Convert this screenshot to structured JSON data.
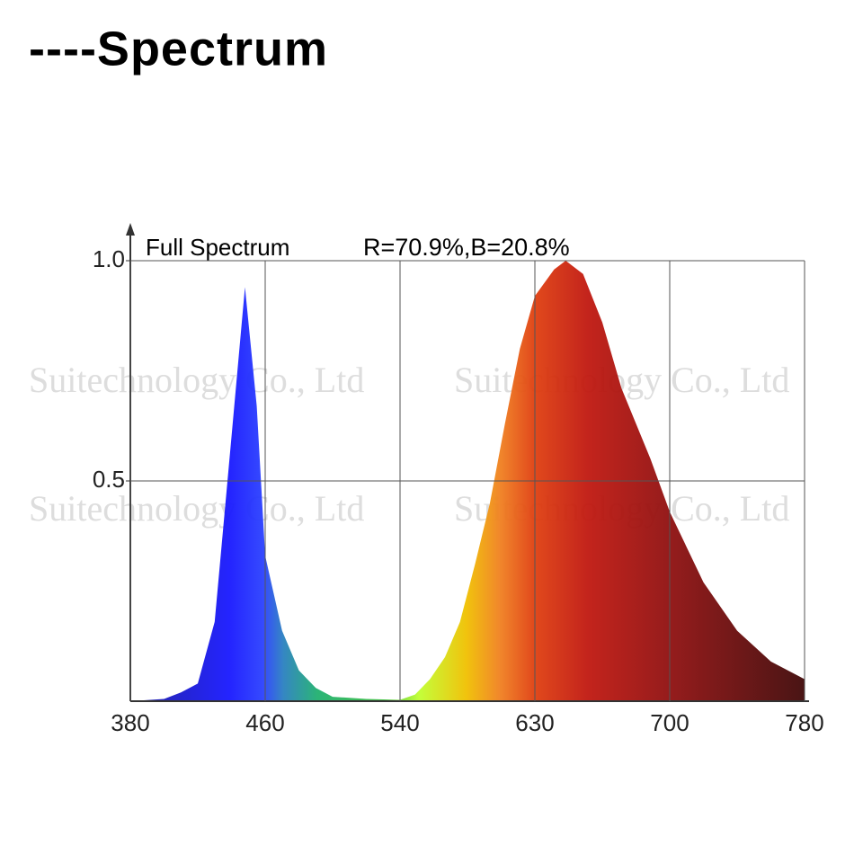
{
  "chart_data": {
    "type": "area",
    "title": "----Spectrum",
    "legend_label": "Full Spectrum",
    "annotation": "R=70.9%,B=20.8%",
    "watermarks": [
      "Suitechnology Co., Ltd",
      "Suitechnology Co., Ltd",
      "Suitechnology Co., Ltd",
      "Suitechnology Co., Ltd"
    ],
    "x": [
      380,
      400,
      410,
      420,
      430,
      440,
      448,
      455,
      460,
      470,
      480,
      490,
      500,
      520,
      540,
      550,
      560,
      570,
      580,
      590,
      600,
      610,
      620,
      630,
      640,
      646,
      655,
      665,
      675,
      690,
      700,
      720,
      740,
      760,
      780
    ],
    "values": [
      0,
      0.005,
      0.02,
      0.04,
      0.18,
      0.6,
      0.94,
      0.67,
      0.33,
      0.16,
      0.07,
      0.03,
      0.01,
      0.005,
      0.003,
      0.015,
      0.05,
      0.1,
      0.18,
      0.31,
      0.45,
      0.63,
      0.8,
      0.92,
      0.98,
      1.0,
      0.97,
      0.86,
      0.71,
      0.55,
      0.43,
      0.27,
      0.16,
      0.09,
      0.05
    ],
    "xlim": [
      380,
      780
    ],
    "xticks": [
      380,
      460,
      540,
      630,
      700,
      780
    ],
    "ylim": [
      0,
      1
    ],
    "yticks": [
      {
        "value": 1.0,
        "label": "1.0"
      },
      {
        "value": 0.5,
        "label": "0.5"
      }
    ],
    "grid": true
  }
}
